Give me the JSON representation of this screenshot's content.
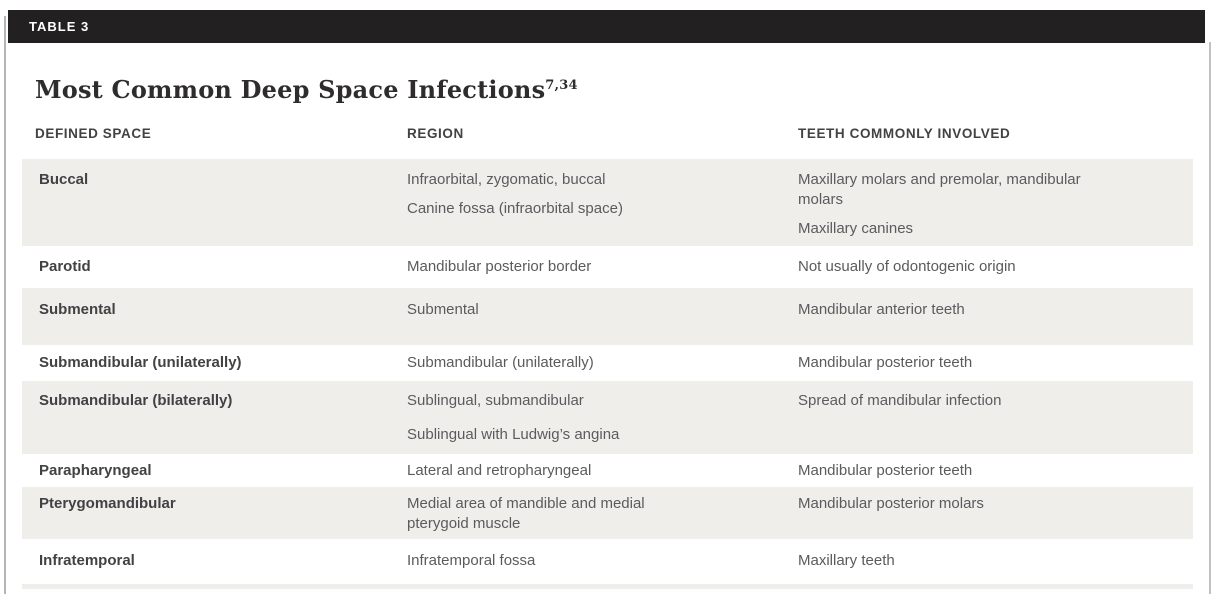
{
  "table_label": "TABLE 3",
  "title": "Most Common Deep Space Infections",
  "title_superscript": "7,34",
  "columns": {
    "defined_space": "DEFINED SPACE",
    "region": "REGION",
    "teeth": "TEETH COMMONLY INVOLVED"
  },
  "rows": [
    {
      "defined_space": "Buccal",
      "region": [
        "Infraorbital, zygomatic, buccal",
        "Canine fossa (infraorbital space)"
      ],
      "teeth": [
        "Maxillary molars and premolar, mandibular molars",
        "Maxillary canines"
      ]
    },
    {
      "defined_space": "Parotid",
      "region": [
        "Mandibular posterior border"
      ],
      "teeth": [
        "Not usually of odontogenic origin"
      ]
    },
    {
      "defined_space": "Submental",
      "region": [
        "Submental"
      ],
      "teeth": [
        "Mandibular anterior teeth"
      ]
    },
    {
      "defined_space": "Submandibular (unilaterally)",
      "region": [
        "Submandibular (unilaterally)"
      ],
      "teeth": [
        "Mandibular posterior teeth"
      ]
    },
    {
      "defined_space": "Submandibular (bilaterally)",
      "region": [
        "Sublingual, submandibular",
        "Sublingual with Ludwig’s angina"
      ],
      "teeth": [
        "Spread of mandibular infection"
      ]
    },
    {
      "defined_space": "Parapharyngeal",
      "region": [
        "Lateral and retropharyngeal"
      ],
      "teeth": [
        "Mandibular posterior teeth"
      ]
    },
    {
      "defined_space": "Pterygomandibular",
      "region": [
        "Medial area of mandible and medial pterygoid muscle"
      ],
      "teeth": [
        "Mandibular posterior molars"
      ]
    },
    {
      "defined_space": "Infratemporal",
      "region": [
        "Infratemporal fossa"
      ],
      "teeth": [
        "Maxillary teeth"
      ]
    }
  ],
  "colors": {
    "header_bar_bg": "#232021",
    "header_bar_text": "#ffffff",
    "row_shade_bg": "#f0eeeb",
    "body_text": "#5a5b5d",
    "strong_text": "#414244",
    "page_edge_line": "#b5b5b5"
  }
}
